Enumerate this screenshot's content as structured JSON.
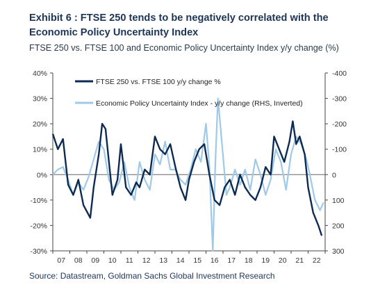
{
  "title": "Exhibit 6 : FTSE 250 tends to be negatively correlated with the Economic Policy Uncertainty Index",
  "subtitle": "FTSE 250 vs. FTSE 100 and Economic Policy Uncertainty Index y/y change (%)",
  "source": "Source: Datastream, Goldman Sachs Global Investment Research",
  "colors": {
    "series1": "#0d2b52",
    "series2": "#9ec9e8",
    "axis": "#444444",
    "zero": "#666666",
    "title": "#1c3557"
  },
  "chart_data": {
    "type": "line",
    "x_start": "2007",
    "x_end": "2023",
    "x_tick_labels": [
      "07",
      "08",
      "09",
      "10",
      "11",
      "12",
      "13",
      "14",
      "15",
      "16",
      "17",
      "18",
      "19",
      "20",
      "21",
      "22"
    ],
    "y_left": {
      "min": -30,
      "max": 40,
      "step": 10,
      "ticks": [
        "-30%",
        "-20%",
        "-10%",
        "0%",
        "10%",
        "20%",
        "30%",
        "40%"
      ]
    },
    "y_right": {
      "min": -400,
      "max": 300,
      "inverted": true,
      "ticks": [
        "-400",
        "-300",
        "-200",
        "-100",
        "0",
        "100",
        "200",
        "300"
      ]
    },
    "grid": false,
    "legend_position": "top-left",
    "series": [
      {
        "name": "FTSE 250 vs. FTSE 100 y/y change %",
        "axis": "left",
        "color": "#0d2b52",
        "x": [
          2007.0,
          2007.3,
          2007.6,
          2007.9,
          2008.2,
          2008.5,
          2008.8,
          2009.2,
          2009.4,
          2009.7,
          2009.9,
          2010.1,
          2010.3,
          2010.5,
          2010.8,
          2011.0,
          2011.3,
          2011.6,
          2011.9,
          2012.1,
          2012.4,
          2012.7,
          2013.0,
          2013.3,
          2013.6,
          2013.9,
          2014.2,
          2014.5,
          2014.8,
          2015.0,
          2015.3,
          2015.6,
          2015.9,
          2016.2,
          2016.5,
          2016.8,
          2017.1,
          2017.4,
          2017.7,
          2018.0,
          2018.3,
          2018.6,
          2018.9,
          2019.2,
          2019.5,
          2019.8,
          2020.0,
          2020.3,
          2020.6,
          2020.9,
          2021.1,
          2021.3,
          2021.5,
          2021.8,
          2022.0,
          2022.3,
          2022.6,
          2022.8
        ],
        "y": [
          16,
          10,
          14,
          -4,
          -8,
          -2,
          -12,
          -17,
          -5,
          8,
          20,
          18,
          5,
          -8,
          -2,
          12,
          -5,
          -8,
          -3,
          -5,
          2,
          0,
          15,
          10,
          8,
          12,
          3,
          -5,
          -10,
          -2,
          5,
          10,
          12,
          0,
          -10,
          -12,
          -5,
          -2,
          -8,
          0,
          -5,
          -8,
          -10,
          -5,
          3,
          0,
          15,
          10,
          5,
          13,
          21,
          12,
          15,
          8,
          -5,
          -15,
          -20,
          -24
        ]
      },
      {
        "name": "Economic Policy Uncertainty Index - y/y change (RHS, Inverted)",
        "axis": "right",
        "color": "#9ec9e8",
        "x": [
          2007.0,
          2007.3,
          2007.6,
          2007.9,
          2008.2,
          2008.5,
          2008.8,
          2009.1,
          2009.4,
          2009.7,
          2010.0,
          2010.3,
          2010.6,
          2010.9,
          2011.2,
          2011.5,
          2011.8,
          2012.1,
          2012.4,
          2012.7,
          2013.0,
          2013.3,
          2013.6,
          2013.9,
          2014.2,
          2014.5,
          2014.8,
          2015.1,
          2015.4,
          2015.7,
          2016.0,
          2016.2,
          2016.4,
          2016.55,
          2016.7,
          2016.9,
          2017.2,
          2017.4,
          2017.7,
          2018.0,
          2018.3,
          2018.6,
          2018.9,
          2019.2,
          2019.5,
          2019.8,
          2020.1,
          2020.4,
          2020.7,
          2021.0,
          2021.3,
          2021.6,
          2021.9,
          2022.1,
          2022.4,
          2022.7,
          2022.9
        ],
        "y": [
          0,
          -20,
          -30,
          20,
          80,
          30,
          60,
          10,
          -60,
          -130,
          -100,
          20,
          60,
          30,
          -50,
          50,
          100,
          -50,
          20,
          60,
          -80,
          -40,
          -130,
          -20,
          -20,
          20,
          40,
          -20,
          -100,
          -50,
          -200,
          -30,
          300,
          -50,
          -300,
          -150,
          80,
          50,
          -20,
          40,
          -20,
          60,
          -60,
          0,
          80,
          20,
          -100,
          -50,
          60,
          -80,
          -150,
          -120,
          -60,
          0,
          100,
          140,
          110
        ]
      }
    ]
  }
}
